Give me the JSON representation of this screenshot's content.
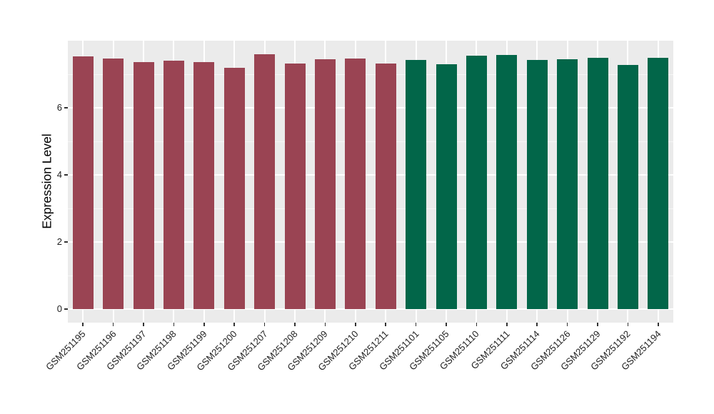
{
  "chart_data": {
    "type": "bar",
    "title": "",
    "ylabel": "Expression Level",
    "yticks": [
      0,
      2,
      4,
      6
    ],
    "yticks_minor": [
      1,
      3,
      5,
      7
    ],
    "ylim": [
      -0.4,
      8.0
    ],
    "grid": true,
    "legend_position": "none",
    "bars": [
      {
        "label": "GSM251195",
        "value": 7.53,
        "group": "red"
      },
      {
        "label": "GSM251196",
        "value": 7.46,
        "group": "red"
      },
      {
        "label": "GSM251197",
        "value": 7.37,
        "group": "red"
      },
      {
        "label": "GSM251198",
        "value": 7.41,
        "group": "red"
      },
      {
        "label": "GSM251199",
        "value": 7.36,
        "group": "red"
      },
      {
        "label": "GSM251200",
        "value": 7.19,
        "group": "red"
      },
      {
        "label": "GSM251207",
        "value": 7.6,
        "group": "red"
      },
      {
        "label": "GSM251208",
        "value": 7.31,
        "group": "red"
      },
      {
        "label": "GSM251209",
        "value": 7.44,
        "group": "red"
      },
      {
        "label": "GSM251210",
        "value": 7.46,
        "group": "red"
      },
      {
        "label": "GSM251211",
        "value": 7.33,
        "group": "red"
      },
      {
        "label": "GSM251101",
        "value": 7.42,
        "group": "green"
      },
      {
        "label": "GSM251105",
        "value": 7.3,
        "group": "green"
      },
      {
        "label": "GSM251110",
        "value": 7.55,
        "group": "green"
      },
      {
        "label": "GSM251111",
        "value": 7.58,
        "group": "green"
      },
      {
        "label": "GSM251114",
        "value": 7.43,
        "group": "green"
      },
      {
        "label": "GSM251126",
        "value": 7.44,
        "group": "green"
      },
      {
        "label": "GSM251129",
        "value": 7.48,
        "group": "green"
      },
      {
        "label": "GSM251192",
        "value": 7.28,
        "group": "green"
      },
      {
        "label": "GSM251194",
        "value": 7.49,
        "group": "green"
      }
    ],
    "colors": {
      "red": "#9A4453",
      "green": "#026649",
      "panel_background": "#EBEBEB",
      "gridline_major": "#FFFFFF",
      "gridline_minor": "#F6F6F6",
      "tick_mark": "#333333",
      "tick_text": "#1F1F1F"
    }
  }
}
